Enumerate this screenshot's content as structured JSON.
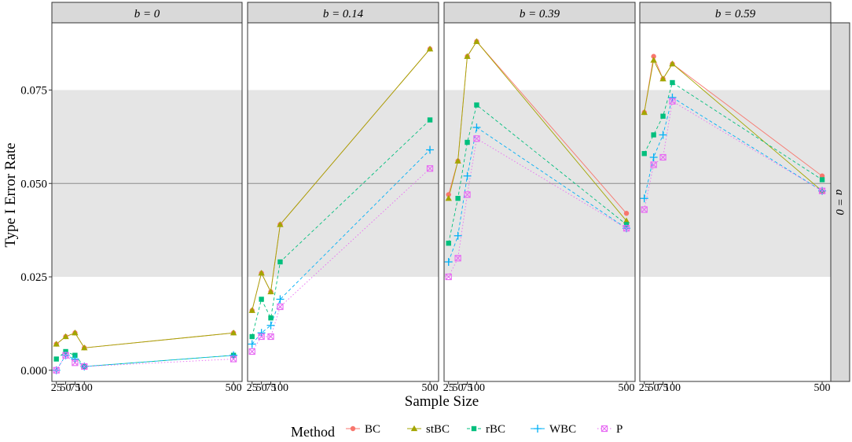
{
  "chart_data": {
    "type": "line",
    "ylabel": "Type I Error Rate",
    "xlabel": "Sample Size",
    "ylim": [
      -0.003,
      0.093
    ],
    "yticks": [
      0.0,
      0.025,
      0.05,
      0.075
    ],
    "ytick_labels": [
      "0.000",
      "0.025",
      "0.050",
      "0.075"
    ],
    "xlim": [
      13,
      523
    ],
    "xticks": [
      25,
      50,
      75,
      100,
      500
    ],
    "xtick_labels": [
      "25",
      "50",
      "75",
      "100",
      "500"
    ],
    "x": [
      25,
      50,
      75,
      100,
      500
    ],
    "band": [
      0.025,
      0.075
    ],
    "reference_line": 0.05,
    "row_strip": "a = 0",
    "legend_title": "Method",
    "legend_position": "bottom",
    "panels": [
      {
        "strip": "b = 0",
        "series": [
          {
            "name": "BC",
            "values": [
              0.007,
              0.009,
              0.01,
              0.006,
              0.01
            ]
          },
          {
            "name": "stBC",
            "values": [
              0.007,
              0.009,
              0.01,
              0.006,
              0.01
            ]
          },
          {
            "name": "rBC",
            "values": [
              0.003,
              0.005,
              0.004,
              0.001,
              0.004
            ]
          },
          {
            "name": "WBC",
            "values": [
              0.0,
              0.004,
              0.003,
              0.001,
              0.004
            ]
          },
          {
            "name": "P",
            "values": [
              0.0,
              0.004,
              0.002,
              0.001,
              0.003
            ]
          }
        ]
      },
      {
        "strip": "b = 0.14",
        "series": [
          {
            "name": "BC",
            "values": [
              0.016,
              0.026,
              0.021,
              0.039,
              0.086
            ]
          },
          {
            "name": "stBC",
            "values": [
              0.016,
              0.026,
              0.021,
              0.039,
              0.086
            ]
          },
          {
            "name": "rBC",
            "values": [
              0.009,
              0.019,
              0.014,
              0.029,
              0.067
            ]
          },
          {
            "name": "WBC",
            "values": [
              0.007,
              0.01,
              0.012,
              0.019,
              0.059
            ]
          },
          {
            "name": "P",
            "values": [
              0.005,
              0.009,
              0.009,
              0.017,
              0.054
            ]
          }
        ]
      },
      {
        "strip": "b = 0.39",
        "series": [
          {
            "name": "BC",
            "values": [
              0.047,
              0.056,
              0.084,
              0.088,
              0.042
            ]
          },
          {
            "name": "stBC",
            "values": [
              0.046,
              0.056,
              0.084,
              0.088,
              0.04
            ]
          },
          {
            "name": "rBC",
            "values": [
              0.034,
              0.046,
              0.061,
              0.071,
              0.039
            ]
          },
          {
            "name": "WBC",
            "values": [
              0.029,
              0.036,
              0.052,
              0.065,
              0.038
            ]
          },
          {
            "name": "P",
            "values": [
              0.025,
              0.03,
              0.047,
              0.062,
              0.038
            ]
          }
        ]
      },
      {
        "strip": "b = 0.59",
        "series": [
          {
            "name": "BC",
            "values": [
              0.069,
              0.084,
              0.078,
              0.082,
              0.052
            ]
          },
          {
            "name": "stBC",
            "values": [
              0.069,
              0.083,
              0.078,
              0.082,
              0.048
            ]
          },
          {
            "name": "rBC",
            "values": [
              0.058,
              0.063,
              0.068,
              0.077,
              0.051
            ]
          },
          {
            "name": "WBC",
            "values": [
              0.046,
              0.057,
              0.063,
              0.073,
              0.048
            ]
          },
          {
            "name": "P",
            "values": [
              0.043,
              0.055,
              0.057,
              0.072,
              0.048
            ]
          }
        ]
      }
    ],
    "legend": [
      {
        "name": "BC",
        "color": "#F8766D",
        "shape": "circle",
        "dash": "solid"
      },
      {
        "name": "stBC",
        "color": "#A3A500",
        "shape": "triangle",
        "dash": "solid"
      },
      {
        "name": "rBC",
        "color": "#00BF7D",
        "shape": "square",
        "dash": "dashed"
      },
      {
        "name": "WBC",
        "color": "#00B0F6",
        "shape": "plus",
        "dash": "dashed"
      },
      {
        "name": "P",
        "color": "#E76BF3",
        "shape": "xsquare",
        "dash": "dotted"
      }
    ]
  }
}
